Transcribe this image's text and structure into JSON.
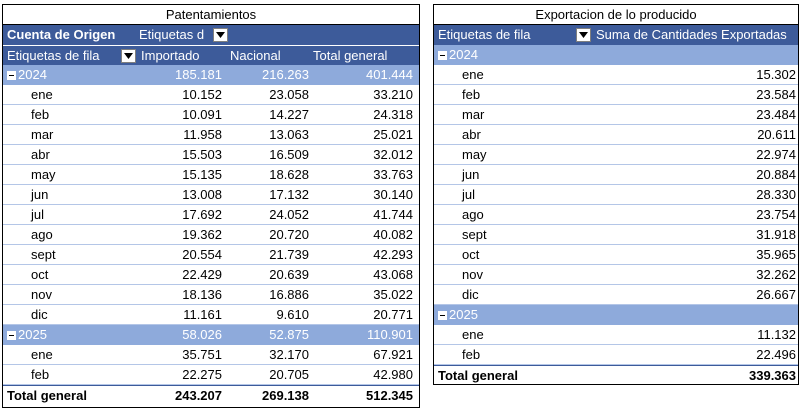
{
  "left": {
    "title": "Patentamientos",
    "pivot_header": "Cuenta de Origen",
    "col_labels_header": "Etiquetas d",
    "row_labels_header": "Etiquetas de fila",
    "columns": [
      "Importado",
      "Nacional",
      "Total general"
    ],
    "groups": [
      {
        "year": "2024",
        "totals": [
          "185.181",
          "216.263",
          "401.444"
        ],
        "rows": [
          {
            "label": "ene",
            "values": [
              "10.152",
              "23.058",
              "33.210"
            ]
          },
          {
            "label": "feb",
            "values": [
              "10.091",
              "14.227",
              "24.318"
            ]
          },
          {
            "label": "mar",
            "values": [
              "11.958",
              "13.063",
              "25.021"
            ]
          },
          {
            "label": "abr",
            "values": [
              "15.503",
              "16.509",
              "32.012"
            ]
          },
          {
            "label": "may",
            "values": [
              "15.135",
              "18.628",
              "33.763"
            ]
          },
          {
            "label": "jun",
            "values": [
              "13.008",
              "17.132",
              "30.140"
            ]
          },
          {
            "label": "jul",
            "values": [
              "17.692",
              "24.052",
              "41.744"
            ]
          },
          {
            "label": "ago",
            "values": [
              "19.362",
              "20.720",
              "40.082"
            ]
          },
          {
            "label": "sept",
            "values": [
              "20.554",
              "21.739",
              "42.293"
            ]
          },
          {
            "label": "oct",
            "values": [
              "22.429",
              "20.639",
              "43.068"
            ]
          },
          {
            "label": "nov",
            "values": [
              "18.136",
              "16.886",
              "35.022"
            ]
          },
          {
            "label": "dic",
            "values": [
              "11.161",
              "9.610",
              "20.771"
            ]
          }
        ]
      },
      {
        "year": "2025",
        "totals": [
          "58.026",
          "52.875",
          "110.901"
        ],
        "rows": [
          {
            "label": "ene",
            "values": [
              "35.751",
              "32.170",
              "67.921"
            ]
          },
          {
            "label": "feb",
            "values": [
              "22.275",
              "20.705",
              "42.980"
            ]
          }
        ]
      }
    ],
    "grand_total": {
      "label": "Total general",
      "values": [
        "243.207",
        "269.138",
        "512.345"
      ]
    }
  },
  "right": {
    "title": "Exportacion de lo producido",
    "row_labels_header": "Etiquetas de fila",
    "value_header": "Suma de Cantidades Exportadas",
    "groups": [
      {
        "year": "2024",
        "rows": [
          {
            "label": "ene",
            "value": "15.302"
          },
          {
            "label": "feb",
            "value": "23.584"
          },
          {
            "label": "mar",
            "value": "23.484"
          },
          {
            "label": "abr",
            "value": "20.611"
          },
          {
            "label": "may",
            "value": "22.974"
          },
          {
            "label": "jun",
            "value": "20.884"
          },
          {
            "label": "jul",
            "value": "28.330"
          },
          {
            "label": "ago",
            "value": "23.754"
          },
          {
            "label": "sept",
            "value": "31.918"
          },
          {
            "label": "oct",
            "value": "35.965"
          },
          {
            "label": "nov",
            "value": "32.262"
          },
          {
            "label": "dic",
            "value": "26.667"
          }
        ]
      },
      {
        "year": "2025",
        "rows": [
          {
            "label": "ene",
            "value": "11.132"
          },
          {
            "label": "feb",
            "value": "22.496"
          }
        ]
      }
    ],
    "grand_total": {
      "label": "Total general",
      "value": "339.363"
    }
  },
  "icons": {
    "filter": "dropdown-arrow-icon",
    "collapse": "collapse-minus-icon"
  },
  "colors": {
    "header": "#3d5b9a",
    "group": "#8eaadb",
    "row_line": "#b4c6e7"
  }
}
